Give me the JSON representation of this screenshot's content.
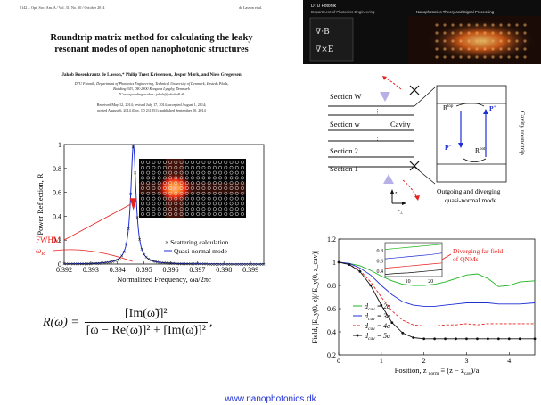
{
  "paper": {
    "header_left": "2142   J. Opt. Soc. Am. A / Vol. 31, No. 10 / October 2014",
    "header_right": "de Lasson et al.",
    "title_line1": "Roundtrip matrix method for calculating the leaky",
    "title_line2": "resonant modes of open nanophotonic structures",
    "authors": "Jakob Rosenkrantz de Lasson,* Philip Trøst Kristensen, Jesper Mørk, and Niels Gregersen",
    "affiliation_line1": "DTU Fotonik, Department of Photonics Engineering, Technical University of Denmark, Ørsteds Plads,",
    "affiliation_line2": "Building 343, DK-2800 Kongens Lyngby, Denmark",
    "affiliation_line3": "*Corresponding author: jakob@jakobrdl.dk",
    "dates_line1": "Received May 12, 2014; revised July 17, 2014; accepted August 1, 2014;",
    "dates_line2": "posted August 6, 2014 (Doc. ID 211951); published September 10, 2014"
  },
  "banner": {
    "org": "DTU Fotonik",
    "dept": "Department of Photonics Engineering",
    "caption": "Nanophotonics Theory and Signal Processing",
    "formula_fragment": "∇·B",
    "formula_fragment2": "∇×E"
  },
  "schematic": {
    "section_W": "Section W",
    "section_w": "Section w",
    "section_2": "Section 2",
    "section_1": "Section 1",
    "cavity": "Cavity",
    "R_top": "R",
    "R_top_sup": "top",
    "R_bot": "R",
    "R_bot_sup": "bot",
    "P_plus": "P",
    "P_plus_sup": "+",
    "P_minus": "P",
    "P_minus_sup": "−",
    "cavity_roundtrip": "Cavity roundtrip",
    "outgoing_line1": "Outgoing and diverging",
    "outgoing_line2": "quasi-normal mode",
    "axis_z": "z",
    "axis_r": "r",
    "axis_r_sub": "⊥"
  },
  "formula": {
    "lhs": "R(ω) =",
    "numerator": "[Im(ω̃)]²",
    "denominator": "[ω − Re(ω̃)]² + [Im(ω̃)]²",
    "trail": ","
  },
  "website": "www.nanophotonics.dk",
  "colors": {
    "red": "#e8201c",
    "blue": "#1f2fd6",
    "green": "#1fb51f",
    "banner_bg": "#0d0d0d"
  },
  "chart_data": [
    {
      "type": "line",
      "title": "",
      "xlabel": "Normalized Frequency, ωa/2πc",
      "ylabel": "Power Reflection, R",
      "xlim": [
        0.392,
        0.3995
      ],
      "ylim": [
        0,
        1
      ],
      "x_ticks": [
        "0.392",
        "0.393",
        "0.394",
        "0.395",
        "0.396",
        "0.397",
        "0.398",
        "0.399"
      ],
      "y_ticks": [
        "0",
        "0.2",
        "0.4",
        "0.6",
        "0.8",
        "1"
      ],
      "series": [
        {
          "name": "Scattering calculation",
          "style": "markers",
          "color": "#111111",
          "resonance": 0.3946,
          "halfwidth": 0.00012
        },
        {
          "name": "Quasi-normal mode",
          "style": "line",
          "color": "#1f2fd6",
          "resonance": 0.3946,
          "halfwidth": 0.00012
        }
      ],
      "annotations": {
        "fwhm": "FWHM",
        "omega_r": "ω",
        "omega_r_sub": "R"
      },
      "inset": {
        "type": "photonic-crystal-field",
        "rows": 11,
        "cols": 19
      }
    },
    {
      "type": "line",
      "title": "",
      "xlabel": "Position, z",
      "xlabel_sub": "norm",
      "xlabel_def": " ≡ (z − z",
      "xlabel_def_sub": "cav",
      "xlabel_tail": ")/a",
      "ylabel": "Field, |E_y(0, z)|/|E_y(0, z_cav)|",
      "xlim": [
        0,
        4.6
      ],
      "ylim": [
        0.2,
        1.2
      ],
      "x_ticks": [
        "0",
        "1",
        "2",
        "3",
        "4"
      ],
      "y_ticks": [
        "0.2",
        "0.4",
        "0.6",
        "0.8",
        "1",
        "1.2"
      ],
      "legend": "bottom-left",
      "annotation": {
        "line1": "Diverging far field",
        "line2": "of QNMs"
      },
      "series": [
        {
          "name": "d_cav = 2a",
          "label": "d",
          "sub": "cav",
          "value": " = 2a",
          "color": "#1fb51f",
          "style": "solid",
          "x": [
            0,
            0.25,
            0.5,
            0.75,
            1.0,
            1.25,
            1.5,
            1.75,
            2.0,
            2.25,
            2.5,
            2.75,
            3.0,
            3.25,
            3.5,
            3.75,
            4.0,
            4.25,
            4.6
          ],
          "y": [
            1,
            0.99,
            0.97,
            0.93,
            0.88,
            0.84,
            0.81,
            0.8,
            0.8,
            0.81,
            0.83,
            0.86,
            0.89,
            0.9,
            0.86,
            0.79,
            0.8,
            0.83,
            0.84
          ]
        },
        {
          "name": "d_cav = 3a",
          "label": "d",
          "sub": "cav",
          "value": " = 3a",
          "color": "#1f2fd6",
          "style": "solid",
          "x": [
            0,
            0.25,
            0.5,
            0.75,
            1.0,
            1.25,
            1.5,
            1.75,
            2.0,
            2.25,
            2.5,
            2.75,
            3.0,
            3.25,
            3.5,
            3.75,
            4.0,
            4.25,
            4.6
          ],
          "y": [
            1,
            0.99,
            0.95,
            0.89,
            0.8,
            0.72,
            0.66,
            0.63,
            0.62,
            0.62,
            0.63,
            0.64,
            0.65,
            0.65,
            0.65,
            0.64,
            0.64,
            0.64,
            0.65
          ]
        },
        {
          "name": "d_cav = 4a",
          "label": "d",
          "sub": "cav",
          "value": " = 4a",
          "color": "#e8201c",
          "style": "dashed",
          "x": [
            0,
            0.25,
            0.5,
            0.75,
            1.0,
            1.25,
            1.5,
            1.75,
            2.0,
            2.25,
            2.5,
            2.75,
            3.0,
            3.25,
            3.5,
            3.75,
            4.0,
            4.25,
            4.6
          ],
          "y": [
            1,
            0.98,
            0.93,
            0.83,
            0.7,
            0.58,
            0.5,
            0.46,
            0.45,
            0.45,
            0.46,
            0.46,
            0.47,
            0.46,
            0.47,
            0.47,
            0.47,
            0.47,
            0.47
          ]
        },
        {
          "name": "d_cav = 5a",
          "label": "d",
          "sub": "cav",
          "value": " = 5a",
          "color": "#111111",
          "style": "markers",
          "x": [
            0,
            0.25,
            0.5,
            0.75,
            1.0,
            1.25,
            1.5,
            1.75,
            2.0,
            2.25,
            2.5,
            2.75,
            3.0,
            3.25,
            3.5,
            3.75,
            4.0,
            4.25,
            4.6
          ],
          "y": [
            1,
            0.98,
            0.92,
            0.8,
            0.63,
            0.48,
            0.39,
            0.35,
            0.34,
            0.34,
            0.34,
            0.34,
            0.34,
            0.34,
            0.34,
            0.34,
            0.34,
            0.34,
            0.34
          ]
        }
      ],
      "inset": {
        "x_ticks": [
          "10",
          "20"
        ],
        "y_ticks": [
          "0.4",
          "0.6",
          "0.8"
        ],
        "xlim": [
          0,
          25
        ],
        "ylim": [
          0.3,
          0.95
        ],
        "series": [
          {
            "color": "#1fb51f",
            "x": [
              0,
              5,
              10,
              15,
              20,
              25
            ],
            "y": [
              0.82,
              0.84,
              0.86,
              0.88,
              0.9,
              0.92
            ]
          },
          {
            "color": "#1f2fd6",
            "x": [
              0,
              5,
              10,
              15,
              20,
              25
            ],
            "y": [
              0.64,
              0.66,
              0.68,
              0.7,
              0.72,
              0.75
            ]
          },
          {
            "color": "#e8201c",
            "x": [
              0,
              5,
              10,
              15,
              20,
              25
            ],
            "y": [
              0.46,
              0.48,
              0.5,
              0.52,
              0.54,
              0.56
            ]
          },
          {
            "color": "#111111",
            "x": [
              0,
              5,
              10,
              15,
              20,
              25
            ],
            "y": [
              0.34,
              0.36,
              0.37,
              0.39,
              0.41,
              0.43
            ]
          }
        ]
      }
    }
  ]
}
